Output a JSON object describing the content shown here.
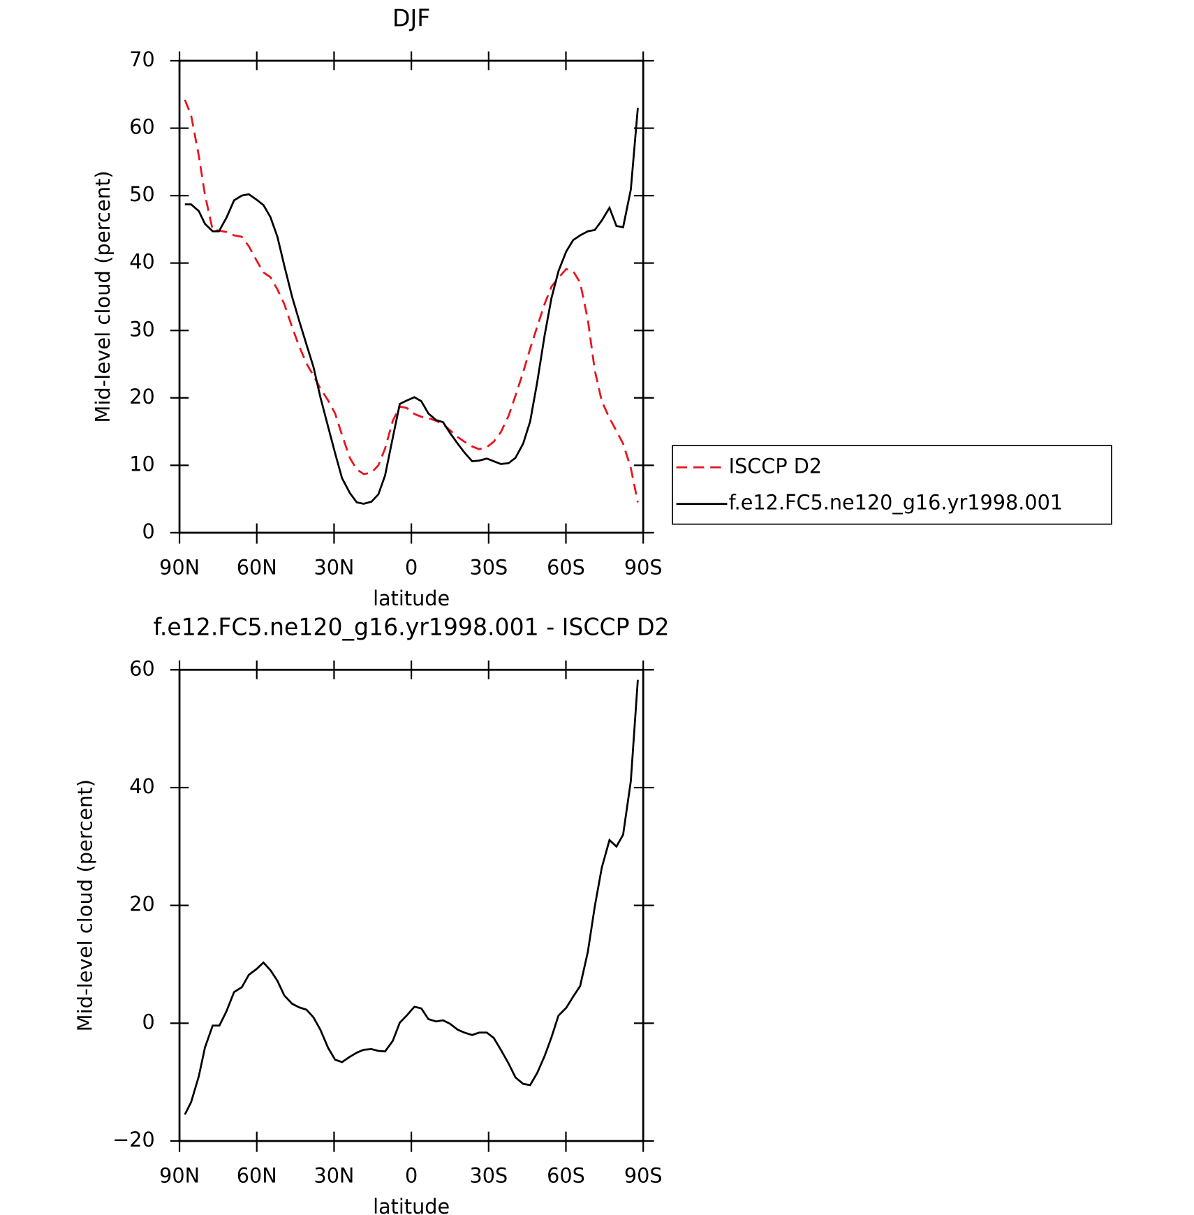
{
  "chart_data": [
    {
      "type": "line",
      "title": "DJF",
      "x_label": "latitude",
      "y_label": "Mid-level cloud (percent)",
      "xlim": [
        90,
        -90
      ],
      "ylim": [
        0,
        70
      ],
      "xticks": [
        {
          "value": 90,
          "label": "90N"
        },
        {
          "value": 60,
          "label": "60N"
        },
        {
          "value": 30,
          "label": "30N"
        },
        0,
        {
          "value": -30,
          "label": "30S"
        },
        {
          "value": -60,
          "label": "60S"
        },
        {
          "value": -90,
          "label": "90S"
        }
      ],
      "yticks": [
        0,
        10,
        20,
        30,
        40,
        50,
        60,
        70
      ],
      "legend": "right",
      "series": [
        {
          "name": "ISCCP D2",
          "color": "#e8141c",
          "dash": true,
          "x": [
            87.9,
            85.5,
            82.5,
            80.1,
            77.1,
            74.5,
            71.8,
            68.8,
            65.8,
            63.1,
            60.1,
            57.4,
            54.7,
            52.0,
            49.3,
            46.3,
            43.6,
            40.7,
            38.0,
            35.3,
            32.3,
            29.6,
            26.9,
            23.9,
            21.2,
            18.5,
            15.5,
            12.8,
            10.2,
            7.2,
            4.5,
            1.8,
            -1.2,
            -3.9,
            -6.6,
            -9.6,
            -12.3,
            -15.0,
            -18.0,
            -20.6,
            -23.6,
            -26.3,
            -29.3,
            -32.0,
            -34.7,
            -37.7,
            -40.4,
            -43.4,
            -46.1,
            -48.8,
            -51.7,
            -54.4,
            -57.1,
            -60.1,
            -62.8,
            -65.5,
            -68.5,
            -71.2,
            -73.9,
            -76.9,
            -79.6,
            -82.2,
            -85.2,
            -87.9
          ],
          "values": [
            64.2,
            61.9,
            55.9,
            50.1,
            44.9,
            44.8,
            44.6,
            44.1,
            43.9,
            42.5,
            40.4,
            38.6,
            37.9,
            36.1,
            33.9,
            30.5,
            27.7,
            25.1,
            23.3,
            21.4,
            19.6,
            17.7,
            14.5,
            11.1,
            9.4,
            8.7,
            8.9,
            10.0,
            12.5,
            16.6,
            18.7,
            18.5,
            17.6,
            17.2,
            17.0,
            16.6,
            16.1,
            15.2,
            14.2,
            13.5,
            12.8,
            12.4,
            12.7,
            13.5,
            14.9,
            17.3,
            20.3,
            23.8,
            27.3,
            30.5,
            33.9,
            36.5,
            37.8,
            39.1,
            38.8,
            37.1,
            31.6,
            24.1,
            19.5,
            17.0,
            15.1,
            13.2,
            9.6,
            4.5
          ]
        },
        {
          "name": "f.e12.FC5.ne120_g16.yr1998.001",
          "color": "#000000",
          "dash": false,
          "x": [
            87.9,
            85.5,
            82.5,
            80.1,
            77.1,
            74.7,
            71.8,
            68.8,
            65.8,
            63.1,
            60.1,
            57.4,
            54.7,
            52.0,
            49.3,
            46.3,
            43.6,
            40.7,
            38.0,
            35.3,
            32.3,
            29.6,
            26.9,
            23.9,
            21.2,
            18.5,
            15.5,
            12.8,
            10.2,
            7.2,
            4.5,
            1.8,
            -1.2,
            -3.9,
            -6.6,
            -9.6,
            -12.3,
            -15.0,
            -18.0,
            -20.6,
            -23.6,
            -26.3,
            -29.3,
            -32.0,
            -34.7,
            -37.7,
            -40.4,
            -43.4,
            -46.1,
            -48.8,
            -51.7,
            -54.4,
            -57.1,
            -60.1,
            -62.8,
            -65.5,
            -68.5,
            -71.2,
            -73.9,
            -76.9,
            -79.6,
            -82.2,
            -85.2,
            -87.9
          ],
          "values": [
            48.7,
            48.7,
            47.7,
            45.8,
            44.7,
            44.7,
            46.7,
            49.3,
            50.0,
            50.2,
            49.4,
            48.6,
            46.8,
            43.9,
            39.6,
            35.0,
            31.5,
            27.9,
            24.6,
            20.1,
            15.7,
            11.8,
            8.1,
            5.9,
            4.5,
            4.3,
            4.6,
            5.7,
            8.5,
            14.1,
            19.1,
            19.6,
            20.1,
            19.5,
            17.7,
            16.7,
            16.4,
            14.8,
            13.2,
            11.9,
            10.6,
            10.7,
            11.0,
            10.6,
            10.2,
            10.3,
            11.1,
            13.2,
            16.5,
            22.2,
            29.2,
            34.8,
            38.8,
            41.7,
            43.4,
            44.1,
            44.7,
            44.9,
            46.3,
            48.2,
            45.5,
            45.3,
            50.9,
            63.0
          ]
        }
      ]
    },
    {
      "type": "line",
      "title": "f.e12.FC5.ne120_g16.yr1998.001 - ISCCP D2",
      "x_label": "latitude",
      "y_label": "Mid-level cloud (percent)",
      "xlim": [
        90,
        -90
      ],
      "ylim": [
        -20,
        60
      ],
      "xticks": [
        {
          "value": 90,
          "label": "90N"
        },
        {
          "value": 60,
          "label": "60N"
        },
        {
          "value": 30,
          "label": "30N"
        },
        0,
        {
          "value": -30,
          "label": "30S"
        },
        {
          "value": -60,
          "label": "60S"
        },
        {
          "value": -90,
          "label": "90S"
        }
      ],
      "yticks": [
        {
          "value": -20,
          "label": "−20"
        },
        0,
        20,
        40,
        60
      ],
      "series": [
        {
          "color": "#000000",
          "dash": false,
          "x": [
            87.9,
            85.5,
            82.5,
            80.1,
            77.1,
            74.5,
            71.8,
            68.8,
            65.8,
            63.1,
            60.1,
            57.4,
            54.7,
            52.0,
            49.3,
            46.3,
            43.6,
            40.7,
            38.0,
            35.3,
            32.3,
            29.6,
            26.9,
            23.9,
            21.2,
            18.5,
            15.5,
            12.8,
            10.2,
            7.2,
            4.5,
            1.8,
            -1.2,
            -3.9,
            -6.6,
            -9.6,
            -12.3,
            -15.0,
            -18.0,
            -20.6,
            -23.6,
            -26.3,
            -29.3,
            -32.0,
            -34.7,
            -37.7,
            -40.4,
            -43.4,
            -46.1,
            -48.8,
            -51.7,
            -54.4,
            -57.1,
            -60.1,
            -62.8,
            -65.5,
            -68.5,
            -71.2,
            -73.9,
            -76.9,
            -79.6,
            -82.2,
            -85.2,
            -87.9
          ],
          "values": [
            -15.5,
            -13.4,
            -9.0,
            -4.1,
            -0.4,
            -0.4,
            2.0,
            5.3,
            6.1,
            8.2,
            9.2,
            10.3,
            9.0,
            7.2,
            4.7,
            3.3,
            2.7,
            2.3,
            1.0,
            -1.1,
            -4.2,
            -6.2,
            -6.6,
            -5.7,
            -5.0,
            -4.5,
            -4.4,
            -4.7,
            -4.8,
            -3.0,
            0.1,
            1.3,
            2.8,
            2.5,
            0.7,
            0.3,
            0.5,
            -0.1,
            -1.1,
            -1.6,
            -2.0,
            -1.6,
            -1.6,
            -2.5,
            -4.5,
            -6.8,
            -9.2,
            -10.3,
            -10.5,
            -8.5,
            -5.6,
            -2.4,
            1.3,
            2.6,
            4.5,
            6.3,
            12.1,
            19.8,
            26.4,
            31.1,
            30.0,
            32.0,
            41.1,
            58.3
          ]
        }
      ]
    }
  ]
}
